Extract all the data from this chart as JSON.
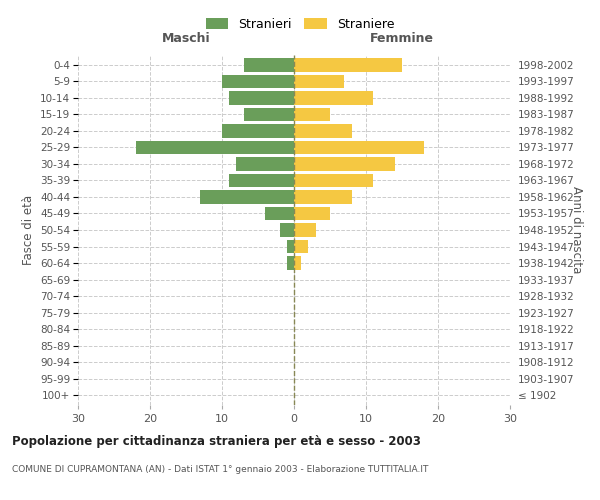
{
  "age_groups": [
    "100+",
    "95-99",
    "90-94",
    "85-89",
    "80-84",
    "75-79",
    "70-74",
    "65-69",
    "60-64",
    "55-59",
    "50-54",
    "45-49",
    "40-44",
    "35-39",
    "30-34",
    "25-29",
    "20-24",
    "15-19",
    "10-14",
    "5-9",
    "0-4"
  ],
  "birth_years": [
    "≤ 1902",
    "1903-1907",
    "1908-1912",
    "1913-1917",
    "1918-1922",
    "1923-1927",
    "1928-1932",
    "1933-1937",
    "1938-1942",
    "1943-1947",
    "1948-1952",
    "1953-1957",
    "1958-1962",
    "1963-1967",
    "1968-1972",
    "1973-1977",
    "1978-1982",
    "1983-1987",
    "1988-1992",
    "1993-1997",
    "1998-2002"
  ],
  "maschi": [
    0,
    0,
    0,
    0,
    0,
    0,
    0,
    0,
    1,
    1,
    2,
    4,
    13,
    9,
    8,
    22,
    10,
    7,
    9,
    10,
    7
  ],
  "femmine": [
    0,
    0,
    0,
    0,
    0,
    0,
    0,
    0,
    1,
    2,
    3,
    5,
    8,
    11,
    14,
    18,
    8,
    5,
    11,
    7,
    15
  ],
  "maschi_color": "#6a9e5a",
  "femmine_color": "#f5c842",
  "title": "Popolazione per cittadinanza straniera per età e sesso - 2003",
  "subtitle": "COMUNE DI CUPRAMONTANA (AN) - Dati ISTAT 1° gennaio 2003 - Elaborazione TUTTITALIA.IT",
  "xlabel_left": "Maschi",
  "xlabel_right": "Femmine",
  "ylabel_left": "Fasce di età",
  "ylabel_right": "Anni di nascita",
  "legend_maschi": "Stranieri",
  "legend_femmine": "Straniere",
  "xlim": 30,
  "bg_color": "#ffffff",
  "grid_color": "#cccccc",
  "bar_height": 0.8
}
